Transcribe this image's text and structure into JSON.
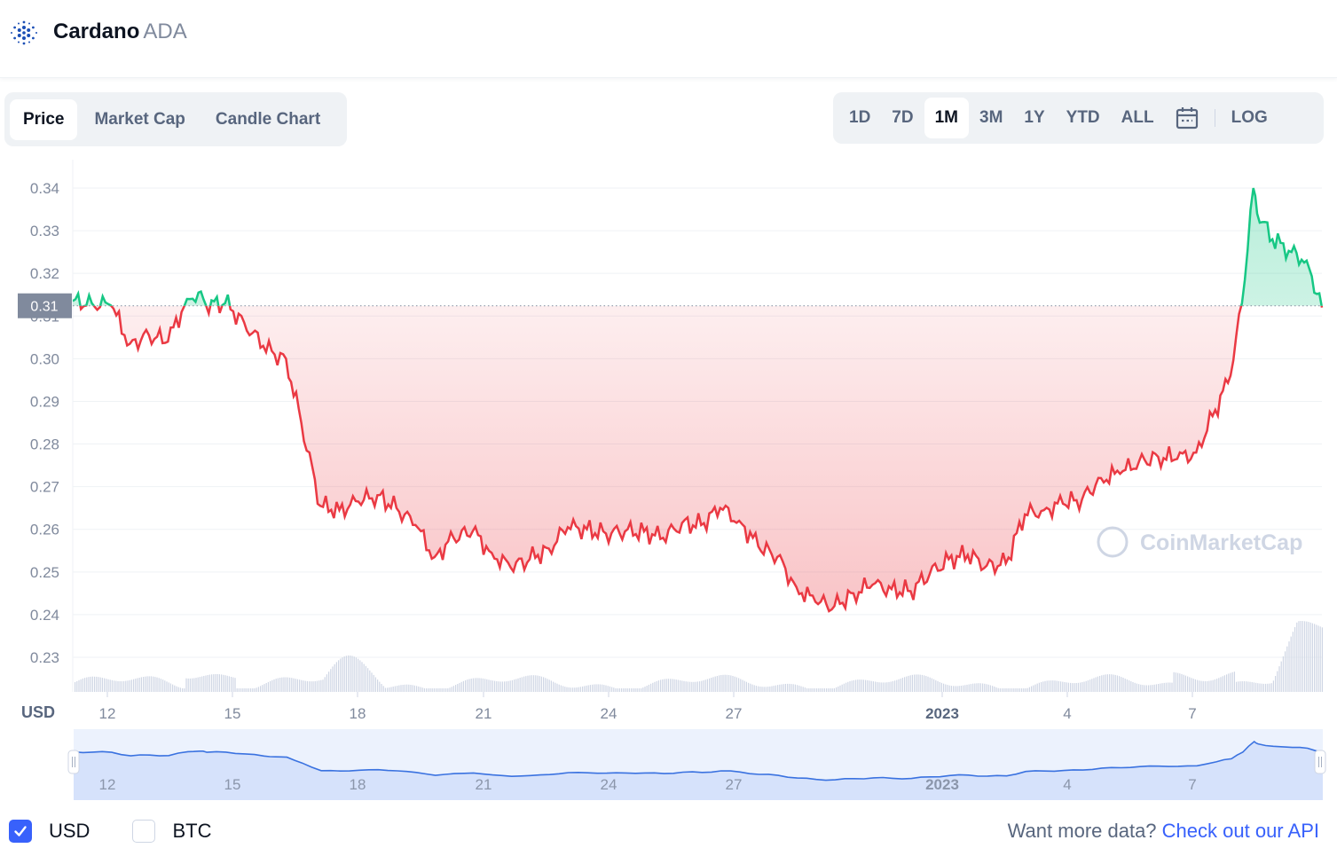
{
  "header": {
    "coin_name": "Cardano",
    "coin_symbol": "ADA",
    "logo_icon": "cardano-logo-icon"
  },
  "tabs": [
    {
      "label": "Price",
      "active": true
    },
    {
      "label": "Market Cap",
      "active": false
    },
    {
      "label": "Candle Chart",
      "active": false
    }
  ],
  "ranges": [
    {
      "label": "1D",
      "active": false
    },
    {
      "label": "7D",
      "active": false
    },
    {
      "label": "1M",
      "active": true
    },
    {
      "label": "3M",
      "active": false
    },
    {
      "label": "1Y",
      "active": false
    },
    {
      "label": "YTD",
      "active": false
    },
    {
      "label": "ALL",
      "active": false
    }
  ],
  "calendar_icon": "calendar-icon",
  "log_label": "LOG",
  "watermark": "CoinMarketCap",
  "currency_label": "USD",
  "current_price_label": "0.31",
  "footer": {
    "usd_label": "USD",
    "usd_checked": true,
    "btc_label": "BTC",
    "btc_checked": false,
    "api_text": "Want more data?",
    "api_link": "Check out our API"
  },
  "colors": {
    "up": "#16c784",
    "down": "#ea3943",
    "accent": "#3861fb",
    "nav_line": "#3a72e0"
  },
  "chart_data": {
    "type": "line",
    "y_ticks": [
      "0.34",
      "0.33",
      "0.32",
      "0.31",
      "0.30",
      "0.29",
      "0.28",
      "0.27",
      "0.26",
      "0.25",
      "0.24",
      "0.23"
    ],
    "ylim": [
      0.23,
      0.34
    ],
    "x_ticks": [
      "12",
      "15",
      "18",
      "21",
      "24",
      "27",
      "2023",
      "4",
      "7"
    ],
    "reference_price": 0.3124,
    "series": [
      {
        "x": [
          0,
          0.5,
          1,
          1.5,
          2,
          2.5,
          3,
          3.3,
          3.5,
          4,
          4.5,
          5,
          5.3,
          5.6,
          6,
          6.5,
          7,
          7.5,
          8,
          8.5,
          9,
          9.5,
          10,
          10.5,
          11,
          11.5,
          12,
          12.5,
          13,
          13.5,
          14,
          14.5,
          15,
          15.5,
          16,
          16.5,
          17,
          17.5,
          18,
          18.5,
          19,
          19.5,
          20,
          20.5,
          21,
          21.5,
          22,
          22.5,
          23,
          23.5,
          24,
          24.5,
          25,
          25.5,
          26,
          26.5,
          27,
          27.5,
          28,
          28.5,
          29,
          29.5,
          30,
          30.4,
          30.7,
          31,
          31.1,
          31.5,
          32,
          32.4,
          32.8
        ],
        "values": [
          0.3135,
          0.313,
          0.3125,
          0.3035,
          0.3055,
          0.304,
          0.314,
          0.3155,
          0.3125,
          0.313,
          0.3085,
          0.303,
          0.301,
          0.3,
          0.285,
          0.2655,
          0.2645,
          0.2665,
          0.268,
          0.265,
          0.261,
          0.2535,
          0.258,
          0.2595,
          0.2545,
          0.251,
          0.253,
          0.2555,
          0.2605,
          0.26,
          0.259,
          0.2595,
          0.2595,
          0.258,
          0.2615,
          0.261,
          0.265,
          0.262,
          0.256,
          0.2535,
          0.2465,
          0.243,
          0.242,
          0.245,
          0.247,
          0.246,
          0.2455,
          0.2495,
          0.253,
          0.254,
          0.2515,
          0.252,
          0.2635,
          0.2645,
          0.266,
          0.267,
          0.272,
          0.273,
          0.276,
          0.277,
          0.2765,
          0.278,
          0.288,
          0.296,
          0.313,
          0.34,
          0.334,
          0.328,
          0.325,
          0.323,
          0.312
        ]
      }
    ]
  }
}
